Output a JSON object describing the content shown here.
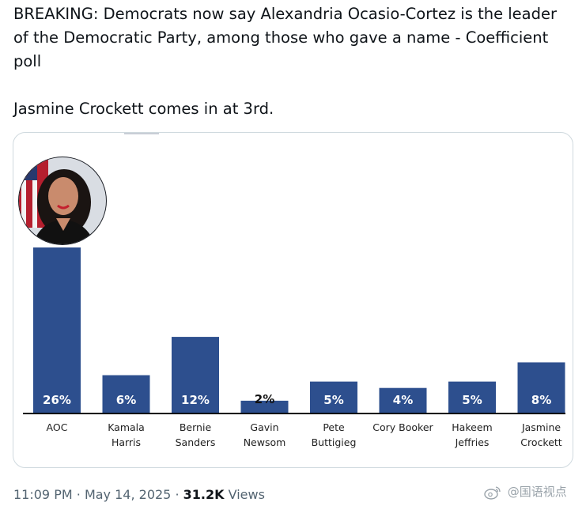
{
  "tweet": {
    "line1": "BREAKING: Democrats now say Alexandria Ocasio-Cortez is the leader of the Democratic Party, among those who gave a name - Coefficient poll",
    "line2": "Jasmine Crockett comes in at 3rd.",
    "time": "11:09 PM",
    "date": "May 14, 2025",
    "views_count": "31.2K",
    "views_label": "Views",
    "separator": "·"
  },
  "watermark": {
    "text": "@国语视点"
  },
  "colors": {
    "bar": "#2d4f8e",
    "bar_label": "#ffffff",
    "axis": "#000000",
    "text": "#0f1419",
    "muted": "#536471"
  },
  "chart_data": {
    "type": "bar",
    "categories": [
      "AOC",
      "Kamala Harris",
      "Bernie Sanders",
      "Gavin Newsom",
      "Pete Buttigieg",
      "Cory Booker",
      "Hakeem Jeffries",
      "Jasmine Crockett"
    ],
    "category_lines": [
      [
        "AOC"
      ],
      [
        "Kamala",
        "Harris"
      ],
      [
        "Bernie",
        "Sanders"
      ],
      [
        "Gavin",
        "Newsom"
      ],
      [
        "Pete",
        "Buttigieg"
      ],
      [
        "Cory Booker"
      ],
      [
        "Hakeem",
        "Jeffries"
      ],
      [
        "Jasmine",
        "Crockett"
      ]
    ],
    "values": [
      26,
      6,
      12,
      2,
      5,
      4,
      5,
      8
    ],
    "value_labels": [
      "26%",
      "6%",
      "12%",
      "2%",
      "5%",
      "4%",
      "5%",
      "8%"
    ],
    "unit": "%",
    "ylim": [
      0,
      26
    ],
    "grid": false,
    "legend": "none",
    "image_marker": {
      "category": "AOC",
      "icon": "portrait-photo"
    }
  }
}
